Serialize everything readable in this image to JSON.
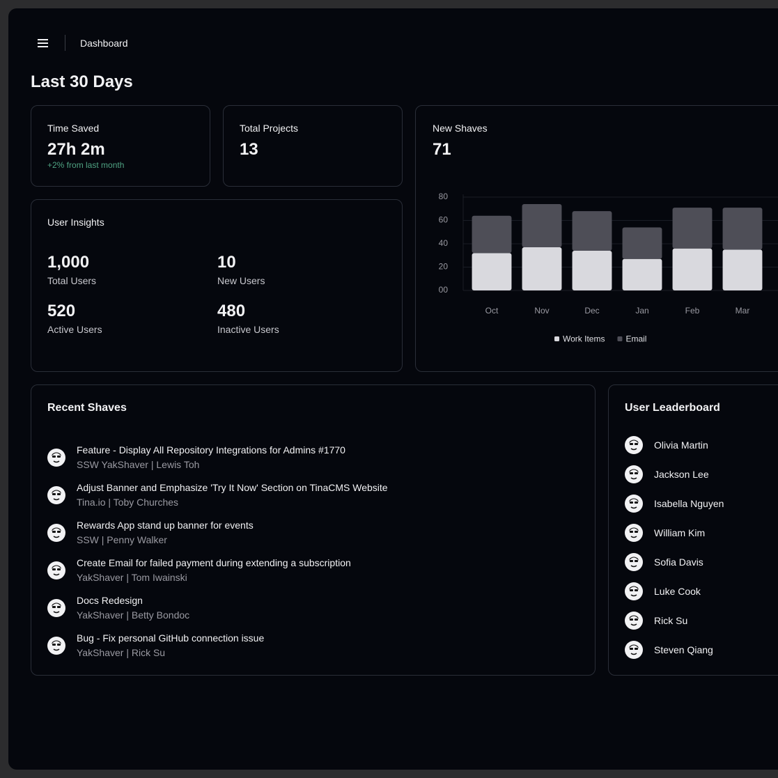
{
  "header": {
    "title": "Dashboard"
  },
  "heading": "Last 30 Days",
  "stats": [
    {
      "label": "Time Saved",
      "value": "27h 2m",
      "note": "+2% from last month"
    },
    {
      "label": "Total Projects",
      "value": "13"
    }
  ],
  "user_insights": {
    "title": "User Insights",
    "items": [
      {
        "value": "1,000",
        "label": "Total Users"
      },
      {
        "value": "10",
        "label": "New Users"
      },
      {
        "value": "520",
        "label": "Active Users"
      },
      {
        "value": "480",
        "label": "Inactive Users"
      }
    ]
  },
  "new_shaves": {
    "title": "New Shaves",
    "total": "71"
  },
  "chart_data": {
    "type": "bar",
    "stacked": true,
    "categories": [
      "Oct",
      "Nov",
      "Dec",
      "Jan",
      "Feb",
      "Mar"
    ],
    "series": [
      {
        "name": "Work Items",
        "color": "#d9d9de",
        "values": [
          32,
          37,
          34,
          27,
          36,
          35
        ]
      },
      {
        "name": "Email",
        "color": "#4e4e57",
        "values": [
          32,
          37,
          34,
          27,
          35,
          36
        ]
      }
    ],
    "ylim": [
      0,
      80
    ],
    "yticks": [
      {
        "value": 0,
        "label": "00"
      },
      20,
      40,
      60,
      80
    ],
    "grid": true,
    "legend": "bottom"
  },
  "recent_shaves": {
    "title": "Recent Shaves",
    "items": [
      {
        "title": "Feature - Display All Repository Integrations for Admins #1770",
        "meta": "SSW YakShaver | Lewis Toh"
      },
      {
        "title": "Adjust Banner and Emphasize 'Try It Now' Section on TinaCMS Website",
        "meta": "Tina.io | Toby Churches"
      },
      {
        "title": "Rewards App stand up banner for events",
        "meta": "SSW | Penny Walker"
      },
      {
        "title": "Create Email for failed payment during extending a subscription",
        "meta": "YakShaver | Tom Iwainski"
      },
      {
        "title": "Docs Redesign",
        "meta": "YakShaver | Betty Bondoc"
      },
      {
        "title": "Bug - Fix personal GitHub connection issue",
        "meta": "YakShaver | Rick Su"
      }
    ]
  },
  "leaderboard": {
    "title": "User Leaderboard",
    "users": [
      "Olivia Martin",
      "Jackson Lee",
      "Isabella Nguyen",
      "William Kim",
      "Sofia Davis",
      "Luke Cook",
      "Rick Su",
      "Steven Qiang"
    ]
  }
}
